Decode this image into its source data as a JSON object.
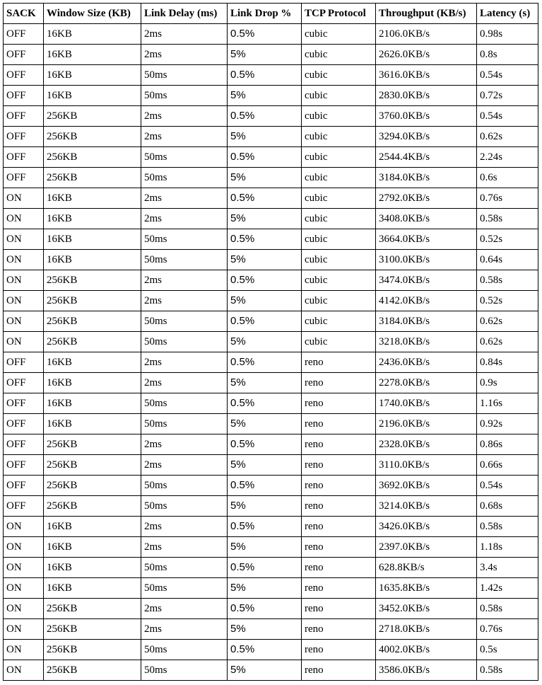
{
  "table": {
    "headers": [
      "SACK",
      "Window Size (KB)",
      "Link Delay (ms)",
      "Link Drop %",
      "TCP Protocol",
      "Throughput (KB/s)",
      "Latency (s)"
    ],
    "rows": [
      [
        "OFF",
        "16KB",
        "2ms",
        "0.5%",
        "cubic",
        "2106.0KB/s",
        "0.98s"
      ],
      [
        "OFF",
        "16KB",
        "2ms",
        "5%",
        "cubic",
        "2626.0KB/s",
        "0.8s"
      ],
      [
        "OFF",
        "16KB",
        "50ms",
        "0.5%",
        "cubic",
        "3616.0KB/s",
        "0.54s"
      ],
      [
        "OFF",
        "16KB",
        "50ms",
        "5%",
        "cubic",
        "2830.0KB/s",
        "0.72s"
      ],
      [
        "OFF",
        "256KB",
        "2ms",
        "0.5%",
        "cubic",
        "3760.0KB/s",
        "0.54s"
      ],
      [
        "OFF",
        "256KB",
        "2ms",
        "5%",
        "cubic",
        "3294.0KB/s",
        "0.62s"
      ],
      [
        "OFF",
        "256KB",
        "50ms",
        "0.5%",
        "cubic",
        "2544.4KB/s",
        "2.24s"
      ],
      [
        "OFF",
        "256KB",
        "50ms",
        "5%",
        "cubic",
        "3184.0KB/s",
        "0.6s"
      ],
      [
        "ON",
        "16KB",
        "2ms",
        "0.5%",
        "cubic",
        "2792.0KB/s",
        "0.76s"
      ],
      [
        "ON",
        "16KB",
        "2ms",
        "5%",
        "cubic",
        "3408.0KB/s",
        "0.58s"
      ],
      [
        "ON",
        "16KB",
        "50ms",
        "0.5%",
        "cubic",
        "3664.0KB/s",
        "0.52s"
      ],
      [
        "ON",
        "16KB",
        "50ms",
        "5%",
        "cubic",
        "3100.0KB/s",
        "0.64s"
      ],
      [
        "ON",
        "256KB",
        "2ms",
        "0.5%",
        "cubic",
        "3474.0KB/s",
        "0.58s"
      ],
      [
        "ON",
        "256KB",
        "2ms",
        "5%",
        "cubic",
        "4142.0KB/s",
        "0.52s"
      ],
      [
        "ON",
        "256KB",
        "50ms",
        "0.5%",
        "cubic",
        "3184.0KB/s",
        "0.62s"
      ],
      [
        "ON",
        "256KB",
        "50ms",
        "5%",
        "cubic",
        "3218.0KB/s",
        "0.62s"
      ],
      [
        "OFF",
        "16KB",
        "2ms",
        "0.5%",
        "reno",
        "2436.0KB/s",
        "0.84s"
      ],
      [
        "OFF",
        "16KB",
        "2ms",
        "5%",
        "reno",
        "2278.0KB/s",
        "0.9s"
      ],
      [
        "OFF",
        "16KB",
        "50ms",
        "0.5%",
        "reno",
        "1740.0KB/s",
        "1.16s"
      ],
      [
        "OFF",
        "16KB",
        "50ms",
        "5%",
        "reno",
        "2196.0KB/s",
        "0.92s"
      ],
      [
        "OFF",
        "256KB",
        "2ms",
        "0.5%",
        "reno",
        "2328.0KB/s",
        "0.86s"
      ],
      [
        "OFF",
        "256KB",
        "2ms",
        "5%",
        "reno",
        "3110.0KB/s",
        "0.66s"
      ],
      [
        "OFF",
        "256KB",
        "50ms",
        "0.5%",
        "reno",
        "3692.0KB/s",
        "0.54s"
      ],
      [
        "OFF",
        "256KB",
        "50ms",
        "5%",
        "reno",
        "3214.0KB/s",
        "0.68s"
      ],
      [
        "ON",
        "16KB",
        "2ms",
        "0.5%",
        "reno",
        "3426.0KB/s",
        "0.58s"
      ],
      [
        "ON",
        "16KB",
        "2ms",
        "5%",
        "reno",
        "2397.0KB/s",
        "1.18s"
      ],
      [
        "ON",
        "16KB",
        "50ms",
        "0.5%",
        "reno",
        "628.8KB/s",
        "3.4s"
      ],
      [
        "ON",
        "16KB",
        "50ms",
        "5%",
        "reno",
        "1635.8KB/s",
        "1.42s"
      ],
      [
        "ON",
        "256KB",
        "2ms",
        "0.5%",
        "reno",
        "3452.0KB/s",
        "0.58s"
      ],
      [
        "ON",
        "256KB",
        "2ms",
        "5%",
        "reno",
        "2718.0KB/s",
        "0.76s"
      ],
      [
        "ON",
        "256KB",
        "50ms",
        "0.5%",
        "reno",
        "4002.0KB/s",
        "0.5s"
      ],
      [
        "ON",
        "256KB",
        "50ms",
        "5%",
        "reno",
        "3586.0KB/s",
        "0.58s"
      ]
    ]
  }
}
